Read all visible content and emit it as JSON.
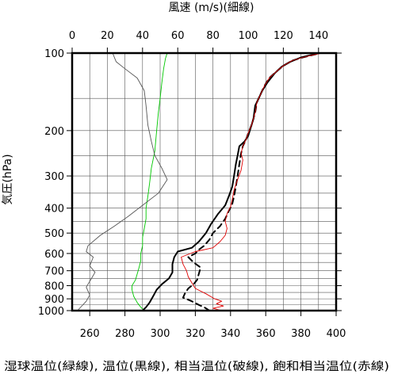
{
  "chart_data": {
    "type": "line",
    "title": "",
    "top_axis": {
      "label": "風速 (m/s)(細線)",
      "ticks": [
        0,
        20,
        40,
        60,
        80,
        100,
        120,
        140
      ],
      "range": [
        0,
        150
      ]
    },
    "bottom_axis": {
      "label": "湿球温位(緑線), 温位(黒線), 相当温位(破線), 飽和相当温位(赤線)",
      "ticks": [
        260,
        280,
        300,
        320,
        340,
        360,
        380,
        400
      ],
      "range": [
        250,
        400
      ]
    },
    "y_axis": {
      "label": "気圧(hPa)",
      "scale": "log",
      "reversed": true,
      "range": [
        100,
        1000
      ],
      "ticks": [
        100,
        200,
        300,
        400,
        500,
        600,
        700,
        800,
        900,
        1000
      ],
      "gridlines": [
        100,
        150,
        200,
        250,
        300,
        350,
        400,
        450,
        500,
        550,
        600,
        650,
        700,
        750,
        800,
        850,
        900,
        950,
        1000
      ]
    },
    "grid": true,
    "series": [
      {
        "name": "湿球温位",
        "color": "#00c800",
        "style": "thin",
        "axis": "bottom",
        "points": [
          [
            291,
            1000
          ],
          [
            289,
            970
          ],
          [
            287,
            930
          ],
          [
            285,
            880
          ],
          [
            284,
            830
          ],
          [
            284,
            800
          ],
          [
            286,
            760
          ],
          [
            287,
            720
          ],
          [
            288,
            680
          ],
          [
            289,
            640
          ],
          [
            289,
            600
          ],
          [
            290,
            560
          ],
          [
            290,
            520
          ],
          [
            291,
            480
          ],
          [
            292,
            440
          ],
          [
            292,
            400
          ],
          [
            293,
            360
          ],
          [
            294,
            320
          ],
          [
            295,
            280
          ],
          [
            297,
            240
          ],
          [
            298,
            200
          ],
          [
            299,
            170
          ],
          [
            300,
            150
          ],
          [
            301,
            130
          ],
          [
            302,
            115
          ],
          [
            303,
            105
          ],
          [
            304,
            100
          ]
        ]
      },
      {
        "name": "温位",
        "color": "#000000",
        "style": "thick",
        "axis": "bottom",
        "points": [
          [
            290,
            1000
          ],
          [
            292,
            970
          ],
          [
            294,
            930
          ],
          [
            296,
            880
          ],
          [
            298,
            830
          ],
          [
            301,
            790
          ],
          [
            305,
            750
          ],
          [
            307,
            710
          ],
          [
            307,
            660
          ],
          [
            308,
            620
          ],
          [
            310,
            590
          ],
          [
            318,
            570
          ],
          [
            322,
            540
          ],
          [
            326,
            500
          ],
          [
            329,
            460
          ],
          [
            333,
            420
          ],
          [
            337,
            390
          ],
          [
            339,
            360
          ],
          [
            341,
            330
          ],
          [
            342,
            300
          ],
          [
            343,
            270
          ],
          [
            344,
            250
          ],
          [
            345,
            230
          ],
          [
            348,
            220
          ],
          [
            350,
            210
          ],
          [
            352,
            190
          ],
          [
            353,
            180
          ],
          [
            354,
            160
          ],
          [
            356,
            150
          ],
          [
            358,
            140
          ],
          [
            361,
            130
          ],
          [
            365,
            120
          ],
          [
            369,
            113
          ],
          [
            374,
            108
          ],
          [
            380,
            104
          ],
          [
            385,
            102
          ],
          [
            390,
            100
          ]
        ]
      },
      {
        "name": "相当温位",
        "color": "#000000",
        "style": "dashed",
        "axis": "bottom",
        "points": [
          [
            328,
            1000
          ],
          [
            325,
            970
          ],
          [
            322,
            950
          ],
          [
            318,
            920
          ],
          [
            313,
            890
          ],
          [
            314,
            860
          ],
          [
            316,
            820
          ],
          [
            319,
            790
          ],
          [
            321,
            760
          ],
          [
            322,
            720
          ],
          [
            323,
            680
          ],
          [
            319,
            650
          ],
          [
            316,
            620
          ],
          [
            320,
            600
          ],
          [
            322,
            580
          ],
          [
            325,
            560
          ],
          [
            328,
            530
          ],
          [
            330,
            500
          ],
          [
            334,
            470
          ],
          [
            337,
            440
          ],
          [
            339,
            410
          ],
          [
            341,
            385
          ],
          [
            342,
            360
          ],
          [
            343,
            330
          ],
          [
            344,
            300
          ],
          [
            345,
            270
          ],
          [
            346,
            245
          ],
          [
            347,
            230
          ],
          [
            349,
            215
          ],
          [
            350,
            205
          ],
          [
            352,
            190
          ],
          [
            354,
            170
          ],
          [
            355,
            155
          ],
          [
            357,
            145
          ],
          [
            359,
            135
          ],
          [
            362,
            125
          ],
          [
            366,
            118
          ],
          [
            370,
            112
          ],
          [
            375,
            107
          ],
          [
            381,
            104
          ],
          [
            386,
            102
          ],
          [
            391,
            100
          ]
        ]
      },
      {
        "name": "飽和相当温位",
        "color": "#e00000",
        "style": "thin",
        "axis": "bottom",
        "points": [
          [
            335,
            1000
          ],
          [
            330,
            980
          ],
          [
            336,
            960
          ],
          [
            332,
            940
          ],
          [
            335,
            920
          ],
          [
            331,
            900
          ],
          [
            326,
            860
          ],
          [
            320,
            820
          ],
          [
            318,
            780
          ],
          [
            316,
            740
          ],
          [
            315,
            700
          ],
          [
            313,
            660
          ],
          [
            312,
            620
          ],
          [
            320,
            590
          ],
          [
            330,
            570
          ],
          [
            334,
            540
          ],
          [
            337,
            510
          ],
          [
            338,
            480
          ],
          [
            337,
            450
          ],
          [
            338,
            420
          ],
          [
            340,
            395
          ],
          [
            341,
            370
          ],
          [
            342,
            340
          ],
          [
            344,
            310
          ],
          [
            346,
            285
          ],
          [
            347,
            260
          ],
          [
            346,
            245
          ],
          [
            347,
            230
          ],
          [
            349,
            215
          ],
          [
            350,
            205
          ],
          [
            352,
            190
          ],
          [
            354,
            170
          ],
          [
            355,
            155
          ],
          [
            357,
            145
          ],
          [
            359,
            135
          ],
          [
            362,
            125
          ],
          [
            366,
            118
          ],
          [
            370,
            112
          ],
          [
            375,
            107
          ],
          [
            381,
            104
          ],
          [
            386,
            102
          ],
          [
            392,
            100
          ]
        ]
      },
      {
        "name": "風速",
        "color": "#555555",
        "style": "thin",
        "axis": "top",
        "points": [
          [
            3,
            1000
          ],
          [
            8,
            920
          ],
          [
            10,
            870
          ],
          [
            8,
            810
          ],
          [
            11,
            750
          ],
          [
            13,
            710
          ],
          [
            10,
            670
          ],
          [
            12,
            620
          ],
          [
            8,
            590
          ],
          [
            9,
            560
          ],
          [
            16,
            510
          ],
          [
            24,
            470
          ],
          [
            32,
            430
          ],
          [
            40,
            390
          ],
          [
            49,
            350
          ],
          [
            54,
            310
          ],
          [
            51,
            280
          ],
          [
            47,
            250
          ],
          [
            45,
            220
          ],
          [
            43,
            190
          ],
          [
            42,
            160
          ],
          [
            41,
            140
          ],
          [
            37,
            125
          ],
          [
            30,
            115
          ],
          [
            25,
            108
          ],
          [
            23,
            100
          ]
        ]
      }
    ]
  }
}
